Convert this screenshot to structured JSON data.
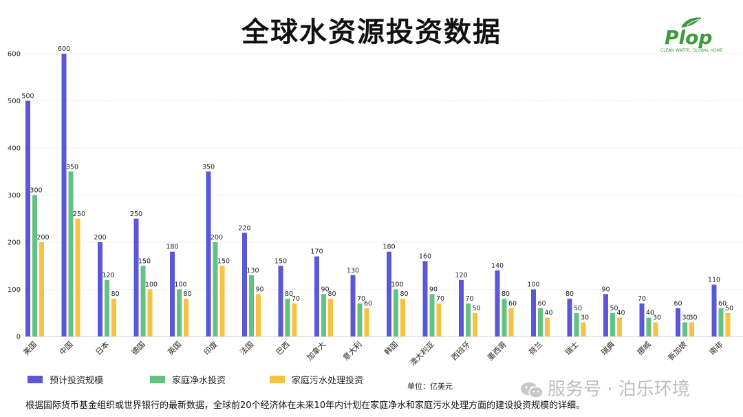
{
  "title": "全球水资源投资数据",
  "logo": {
    "brand": "Plop",
    "tagline": "CLEAN WATER, GLOBAL HOME"
  },
  "unit_label": "单位：亿美元",
  "watermark": "服务号 · 泊乐环境",
  "footnote": "根据国际货币基金组织或世界银行的最新数据，全球前20个经济体在未来10年内计划在家庭净水和家庭污水处理方面的建设投资规模的详细。",
  "colors": {
    "series1": "#5b57d6",
    "series2": "#63c27f",
    "series3": "#f7c242",
    "logo": "#3c9a3c"
  },
  "chart_data": {
    "type": "bar",
    "categories": [
      "美国",
      "中国",
      "日本",
      "德国",
      "英国",
      "印度",
      "法国",
      "巴西",
      "加拿大",
      "意大利",
      "韩国",
      "澳大利亚",
      "西班牙",
      "墨西哥",
      "荷兰",
      "瑞士",
      "瑞典",
      "挪威",
      "新加坡",
      "南非"
    ],
    "series": [
      {
        "name": "预计投资规模",
        "values": [
          500,
          600,
          200,
          250,
          180,
          350,
          220,
          150,
          170,
          130,
          180,
          160,
          120,
          140,
          100,
          80,
          90,
          70,
          60,
          110
        ]
      },
      {
        "name": "家庭净水投资",
        "values": [
          300,
          350,
          120,
          150,
          100,
          200,
          130,
          80,
          90,
          70,
          100,
          90,
          70,
          80,
          60,
          50,
          50,
          40,
          30,
          60
        ]
      },
      {
        "name": "家庭污水处理投资",
        "values": [
          200,
          250,
          80,
          100,
          80,
          150,
          90,
          70,
          80,
          60,
          80,
          70,
          50,
          60,
          40,
          30,
          40,
          30,
          30,
          50
        ]
      }
    ],
    "ylim": [
      0,
      600
    ],
    "yticks": [
      0,
      100,
      200,
      300,
      400,
      500,
      600
    ],
    "grid": true,
    "legend_position": "bottom-left"
  }
}
